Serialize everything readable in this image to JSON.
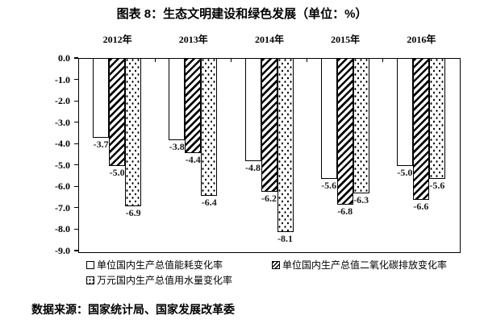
{
  "title": "图表 8：生态文明建设和绿色发展（单位：%）",
  "source": "数据来源：国家统计局、国家发展改革委",
  "colors": {
    "background": "#ffffff",
    "bar_outline": "#000000",
    "text": "#000000"
  },
  "chart_data": {
    "type": "bar",
    "categories": [
      "2012年",
      "2013年",
      "2014年",
      "2015年",
      "2016年"
    ],
    "series": [
      {
        "name": "单位国内生产总值能耗变化率",
        "pattern": "plain",
        "values": [
          -3.7,
          -3.8,
          -4.8,
          -5.6,
          -5.0
        ]
      },
      {
        "name": "单位国内生产总值二氧化碳排放变化率",
        "pattern": "hatch",
        "values": [
          -5.0,
          -4.4,
          -6.2,
          -6.8,
          -6.6
        ]
      },
      {
        "name": "万元国内生产总值用水量变化率",
        "pattern": "dots",
        "values": [
          -6.9,
          -6.4,
          -8.1,
          -6.3,
          -5.6
        ]
      }
    ],
    "ylim": [
      -9.0,
      0.0
    ],
    "ytick_labels": [
      "0.0",
      "-1.0",
      "-2.0",
      "-3.0",
      "-4.0",
      "-5.0",
      "-6.0",
      "-7.0",
      "-8.0",
      "-9.0"
    ],
    "data_labels": true,
    "grid": false,
    "legend_position": "bottom"
  }
}
